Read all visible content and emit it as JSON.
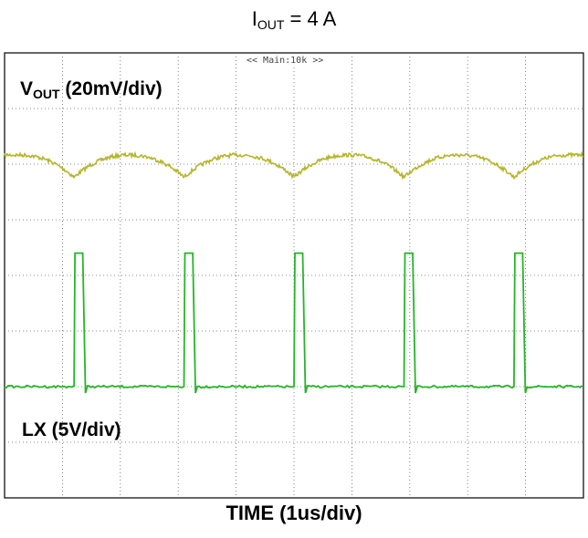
{
  "title": {
    "prefix": "I",
    "sub": "OUT",
    "suffix": " = 4 A"
  },
  "timebase_label": "<< Main:10k >>",
  "channels": {
    "vout": {
      "prefix": "V",
      "sub": "OUT",
      "suffix": " (20mV/div)",
      "color": "#b5b52a"
    },
    "lx": {
      "label": "LX (5V/div)",
      "color": "#26b526"
    }
  },
  "chart_data": {
    "type": "line",
    "xlabel": "TIME (1us/div)",
    "x_units": "us",
    "xlim": [
      0,
      10
    ],
    "grid": true,
    "grid_divisions": {
      "x": 10,
      "y": 8
    },
    "series": [
      {
        "name": "VOUT",
        "scale": "20mV/div",
        "switch_period_us": 1.9,
        "ripple_mV_pp": 10,
        "dip_times_us": [
          1.2,
          3.1,
          5.0,
          6.9,
          8.8
        ]
      },
      {
        "name": "LX",
        "scale": "5V/div",
        "pulse_high_V": 12,
        "pulse_low_V": 0,
        "pulse_start_times_us": [
          1.2,
          3.1,
          5.0,
          6.9,
          8.8
        ],
        "pulse_width_us": 0.15
      }
    ]
  }
}
